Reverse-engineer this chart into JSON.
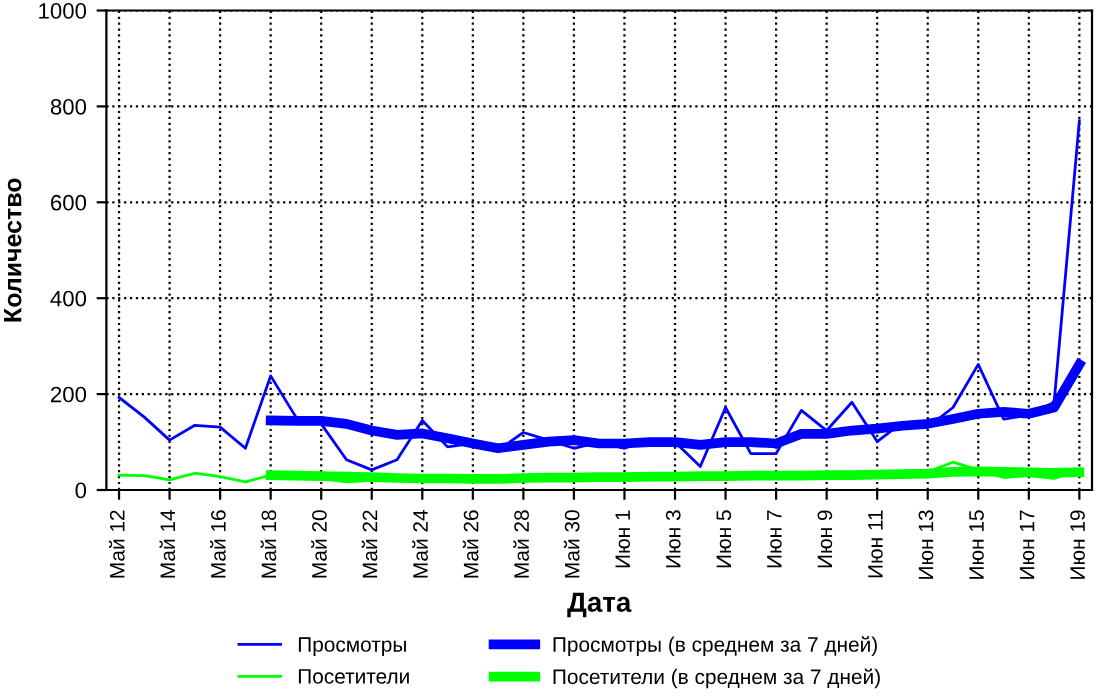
{
  "chart_data": {
    "type": "line",
    "xlabel": "Дата",
    "ylabel": "Количество",
    "categories": [
      "Май 12",
      null,
      "Май 14",
      null,
      "Май 16",
      null,
      "Май 18",
      null,
      "Май 20",
      null,
      "Май 22",
      null,
      "Май 24",
      null,
      "Май 26",
      null,
      "Май 28",
      null,
      "Май 30",
      null,
      "Июн 1",
      null,
      "Июн 3",
      null,
      "Июн 5",
      null,
      "Июн 7",
      null,
      "Июн 9",
      null,
      "Июн 11",
      null,
      "Июн 13",
      null,
      "Июн 15",
      null,
      "Июн 17",
      null,
      "Июн 19"
    ],
    "series": [
      {
        "name": "Просмотры",
        "color": "#0000ff",
        "values": [
          193,
          152,
          104,
          135,
          131,
          87,
          238,
          152,
          138,
          63,
          42,
          63,
          145,
          90,
          97,
          83,
          120,
          104,
          87,
          100,
          87,
          104,
          100,
          49,
          172,
          76,
          76,
          166,
          124,
          183,
          101,
          141,
          131,
          172,
          262,
          148,
          156,
          183,
          770
        ]
      },
      {
        "name": "Посетители",
        "color": "#00ff00",
        "values": [
          31,
          30,
          21,
          35,
          28,
          17,
          31,
          28,
          24,
          17,
          20,
          22,
          26,
          27,
          25,
          22,
          28,
          27,
          28,
          27,
          28,
          30,
          32,
          29,
          31,
          30,
          28,
          33,
          34,
          33,
          34,
          35,
          38,
          58,
          42,
          26,
          30,
          24,
          42
        ]
      },
      {
        "name": "Просмотры (в среднем за 7 дней)",
        "color": "#0000ff",
        "values": [
          null,
          null,
          null,
          null,
          null,
          null,
          145,
          144,
          144,
          138,
          124,
          115,
          118,
          108,
          97,
          87,
          94,
          101,
          104,
          97,
          97,
          100,
          100,
          94,
          100,
          100,
          97,
          117,
          117,
          124,
          128,
          134,
          138,
          148,
          159,
          163,
          159,
          172,
          262
        ]
      },
      {
        "name": "Посетители (в среднем за 7 дней)",
        "color": "#00ff00",
        "values": [
          null,
          null,
          null,
          null,
          null,
          null,
          31,
          30,
          29,
          28,
          27,
          25,
          24,
          24,
          23,
          23,
          25,
          26,
          26,
          27,
          27,
          28,
          28,
          29,
          29,
          30,
          30,
          30,
          31,
          31,
          32,
          33,
          34,
          38,
          39,
          38,
          37,
          36,
          37
        ]
      }
    ],
    "ylim": [
      0,
      1000
    ],
    "yticks": [
      0,
      200,
      400,
      600,
      800,
      1000
    ],
    "grid": true,
    "legend": "bottom",
    "line_style": "solid",
    "marker": "none"
  }
}
